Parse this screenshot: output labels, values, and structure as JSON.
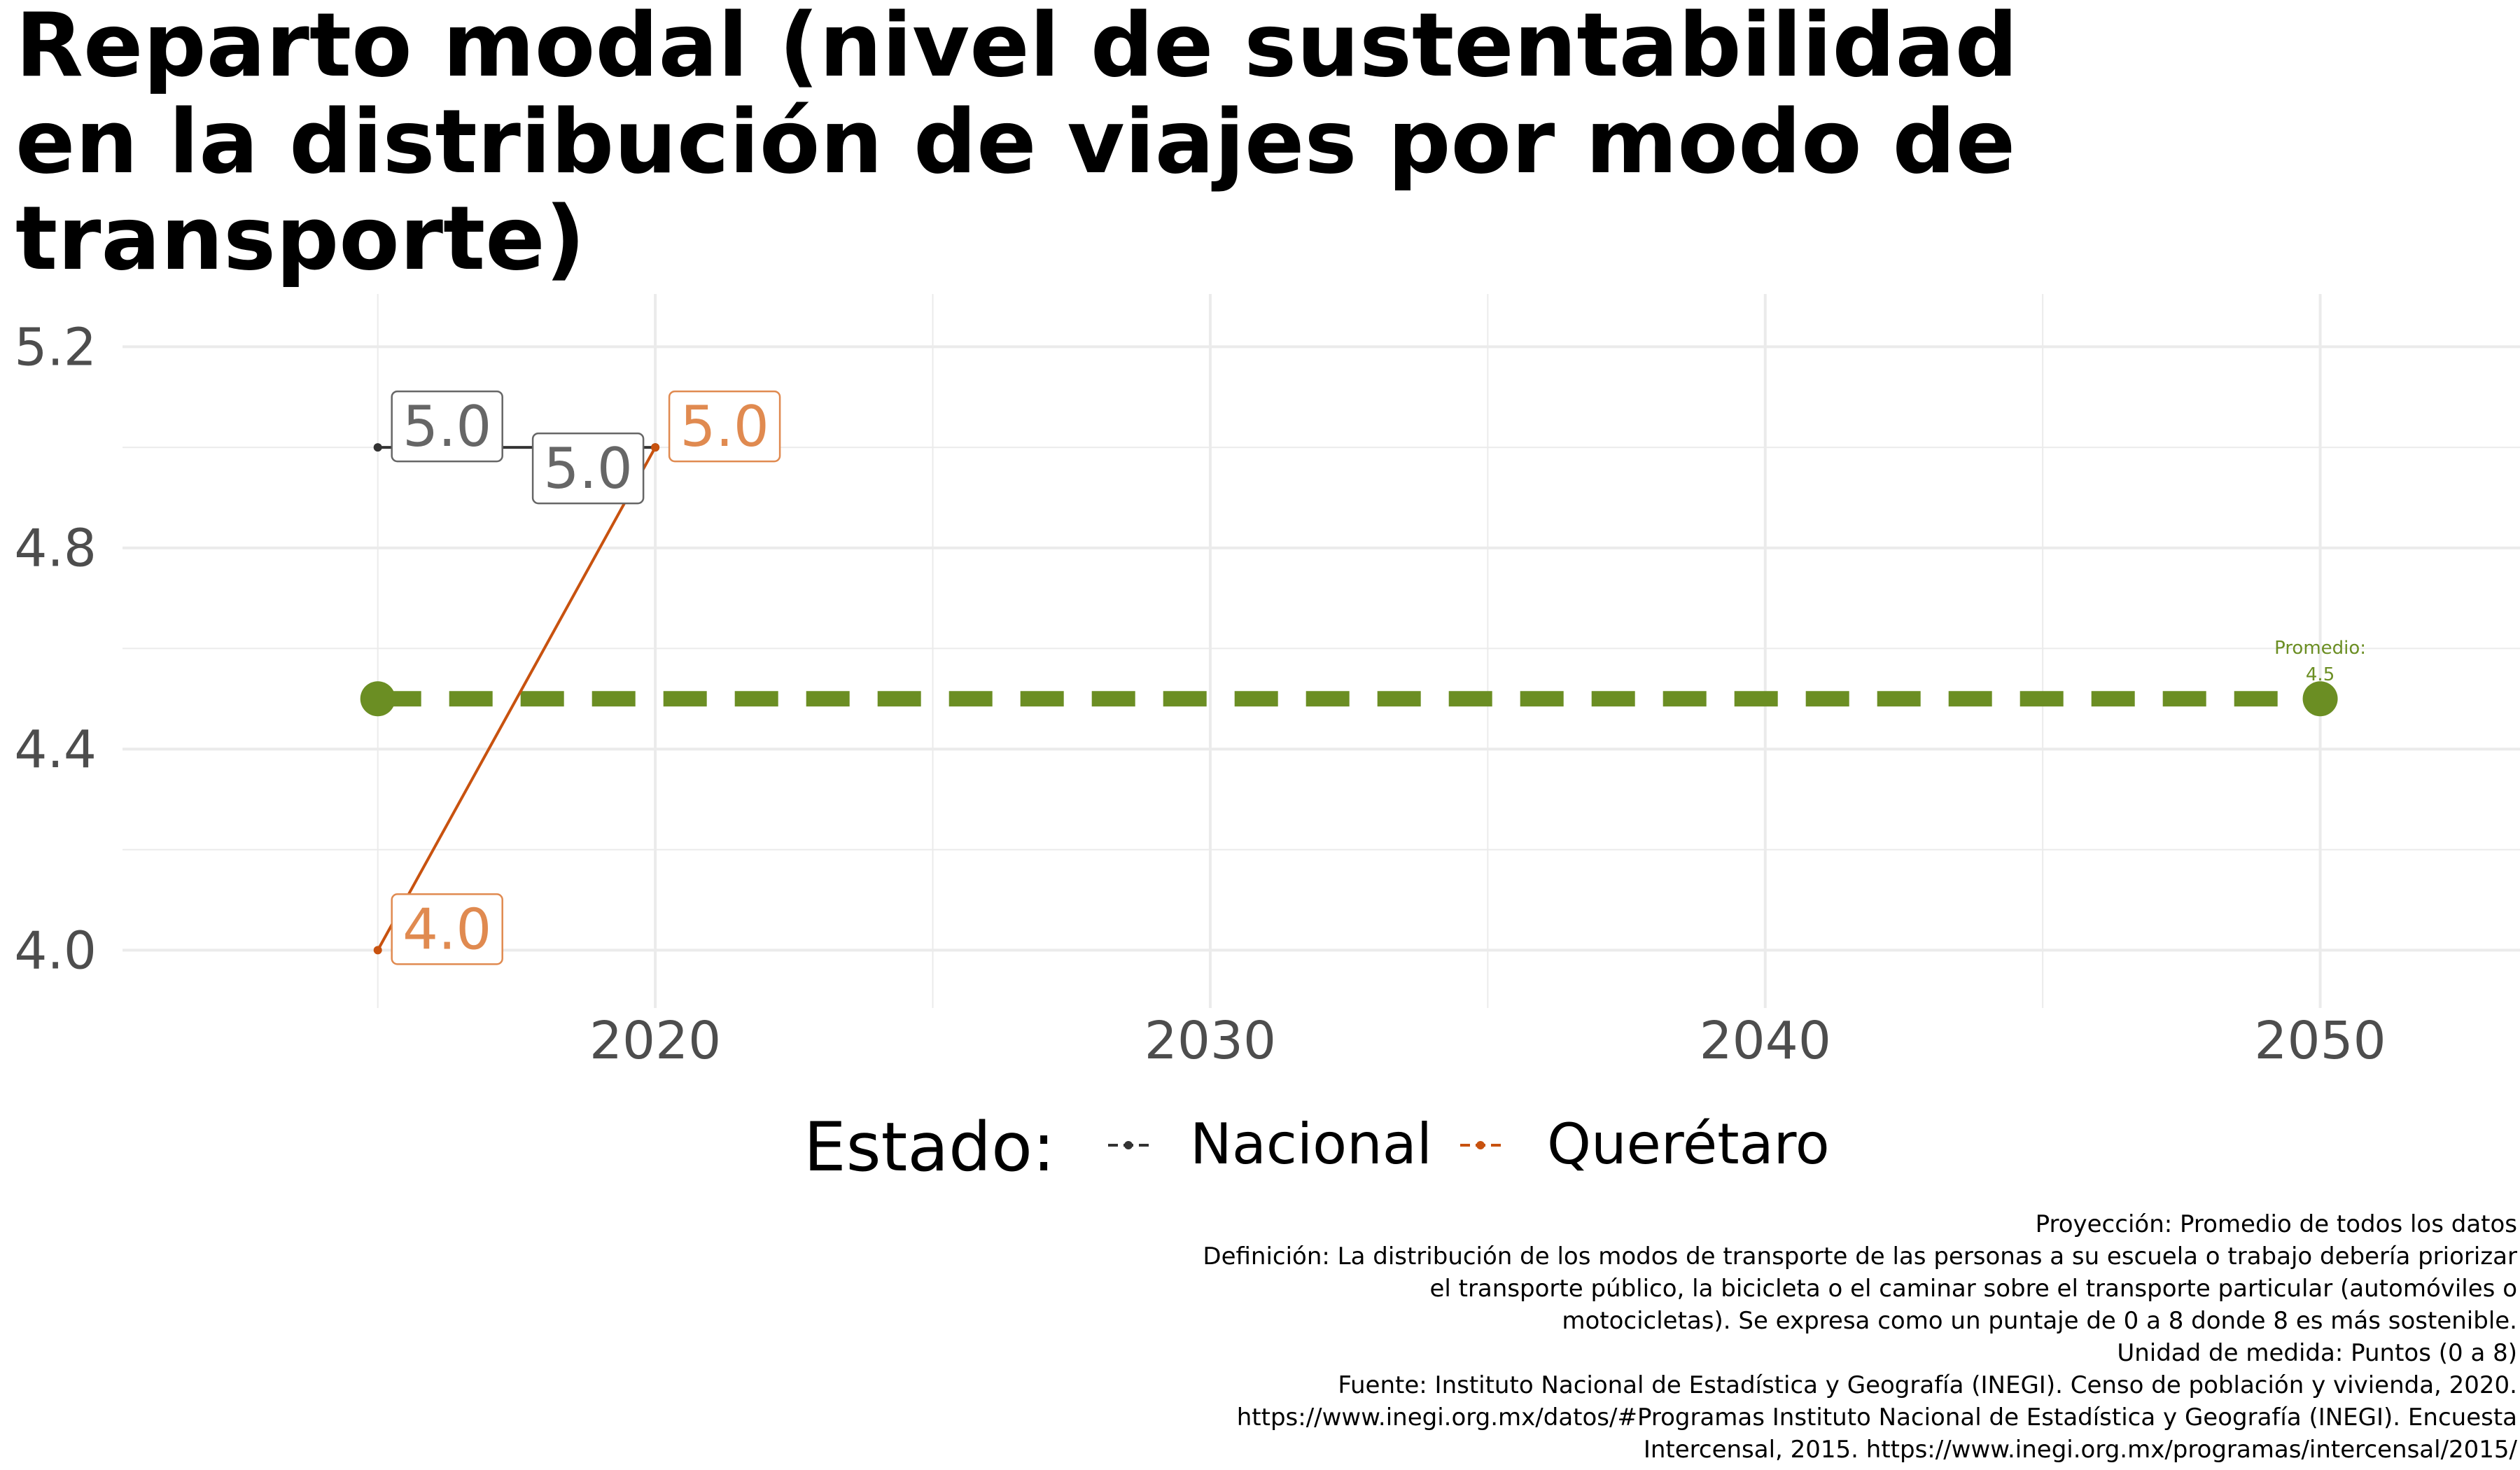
{
  "title_lines": [
    "Reparto modal (nivel de sustentabilidad",
    "en la distribución de viajes por modo de",
    "transporte)"
  ],
  "colors": {
    "nacional": "#333333",
    "queretaro": "#c8520f",
    "queretaro_label": "#e08a50",
    "nacional_label": "#666666",
    "average": "#6b8e23",
    "grid": "#ebebeb"
  },
  "chart_data": {
    "type": "line",
    "title": "Reparto modal (nivel de sustentabilidad en la distribución de viajes por modo de transporte)",
    "x_ticks": [
      2020,
      2030,
      2040,
      2050
    ],
    "y_ticks": [
      "4.0",
      "4.4",
      "4.8",
      "5.2"
    ],
    "xlim": [
      2010.4,
      2053.6
    ],
    "ylim": [
      3.885,
      5.305
    ],
    "grid": true,
    "legend_position": "bottom",
    "series": [
      {
        "name": "Nacional",
        "x": [
          2015,
          2020
        ],
        "y": [
          5.0,
          5.0
        ],
        "labels": [
          "5.0",
          "5.0"
        ]
      },
      {
        "name": "Querétaro",
        "x": [
          2015,
          2020
        ],
        "y": [
          4.0,
          5.0
        ],
        "labels": [
          "4.0",
          "5.0"
        ]
      }
    ],
    "average": {
      "x": [
        2015,
        2050
      ],
      "y": 4.5,
      "label_line1": "Promedio:",
      "label_line2": "4.5"
    }
  },
  "legend": {
    "title": "Estado:",
    "items": [
      "Nacional",
      "Querétaro"
    ]
  },
  "caption_lines": [
    "Proyección: Promedio de todos los datos",
    "Definición: La distribución de los modos de transporte de las personas a su escuela o trabajo debería priorizar",
    "el transporte público, la bicicleta o el caminar sobre el transporte particular (automóviles o",
    "motocicletas). Se expresa como un puntaje de 0 a 8 donde 8 es más sostenible.",
    "Unidad de medida: Puntos (0 a 8)",
    "Fuente: Instituto Nacional de Estadística y Geografía (INEGI). Censo de población y vivienda, 2020.",
    "https://www.inegi.org.mx/datos/#Programas Instituto Nacional de Estadística y Geografía (INEGI). Encuesta",
    "Intercensal, 2015. https://www.inegi.org.mx/programas/intercensal/2015/"
  ]
}
